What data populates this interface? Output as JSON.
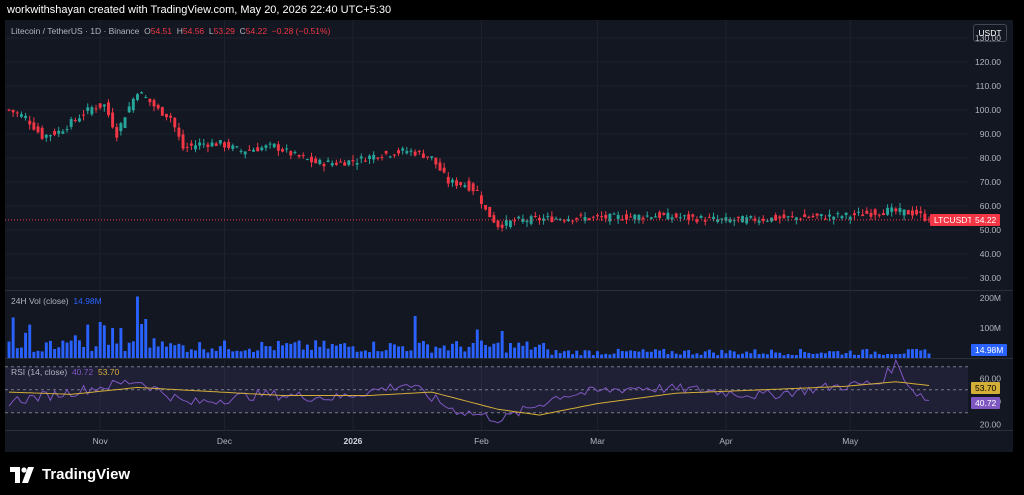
{
  "header": {
    "text": "workwithshayan created with TradingView.com, May 20, 2026 22:40 UTC+5:30"
  },
  "legend": {
    "symbol": "Litecoin / TetherUS · 1D · Binance",
    "o_label": "O",
    "o_value": "54.51",
    "h_label": "H",
    "h_value": "54.56",
    "l_label": "L",
    "l_value": "53.29",
    "c_label": "C",
    "c_value": "54.22",
    "change": "−0.28 (−0.51%)"
  },
  "currency": "USDT",
  "price_tag": {
    "symbol": "LTCUSDT",
    "value": "54.22"
  },
  "volume": {
    "label": "24H Vol (close)",
    "value": "14.98M",
    "tag": "14.98M"
  },
  "rsi": {
    "label": "RSI (14, close)",
    "value": "40.72",
    "ma_value": "53.70",
    "tag_ma": "53.70",
    "tag_rsi": "40.72"
  },
  "colors": {
    "up": "#26a69a",
    "down": "#f23645",
    "volume": "#2962ff",
    "rsi": "#7e57c2",
    "rsi_ma": "#d4af37",
    "pane": "#131722",
    "grid": "#1e222d",
    "text": "#b2b5be"
  },
  "footer": {
    "logo_text": "TradingView",
    "logo_icon": "tradingview-logo-icon"
  },
  "chart_data": [
    {
      "type": "candlestick",
      "title": "Litecoin / TetherUS · 1D · Binance",
      "x_ticks": [
        "Nov",
        "Dec",
        "2026",
        "Feb",
        "Mar",
        "Apr",
        "May"
      ],
      "y_ticks": [
        30,
        40,
        50,
        60,
        70,
        80,
        90,
        100,
        110,
        120,
        130
      ],
      "ylim": [
        25,
        135
      ],
      "x_range": [
        "2025-10-10",
        "2026-05-20"
      ],
      "close_points": [
        [
          "2025-10-10",
          100
        ],
        [
          "2025-10-14",
          97
        ],
        [
          "2025-10-18",
          89
        ],
        [
          "2025-10-22",
          91
        ],
        [
          "2025-10-26",
          96
        ],
        [
          "2025-10-30",
          101
        ],
        [
          "2025-11-02",
          102
        ],
        [
          "2025-11-05",
          90
        ],
        [
          "2025-11-07",
          98
        ],
        [
          "2025-11-10",
          108
        ],
        [
          "2025-11-12",
          105
        ],
        [
          "2025-11-15",
          100
        ],
        [
          "2025-11-18",
          97
        ],
        [
          "2025-11-21",
          84
        ],
        [
          "2025-11-25",
          86
        ],
        [
          "2025-11-30",
          86
        ],
        [
          "2025-12-05",
          83
        ],
        [
          "2025-12-09",
          84
        ],
        [
          "2025-12-13",
          85
        ],
        [
          "2025-12-18",
          81
        ],
        [
          "2025-12-23",
          78
        ],
        [
          "2025-12-28",
          78
        ],
        [
          "2026-01-02",
          79
        ],
        [
          "2026-01-06",
          81
        ],
        [
          "2026-01-10",
          82
        ],
        [
          "2026-01-14",
          83
        ],
        [
          "2026-01-17",
          82
        ],
        [
          "2026-01-20",
          80
        ],
        [
          "2026-01-24",
          70
        ],
        [
          "2026-01-28",
          69
        ],
        [
          "2026-01-31",
          66
        ],
        [
          "2026-02-02",
          58
        ],
        [
          "2026-02-05",
          52
        ],
        [
          "2026-02-10",
          54
        ],
        [
          "2026-02-20",
          55
        ],
        [
          "2026-03-01",
          55
        ],
        [
          "2026-03-15",
          56
        ],
        [
          "2026-04-01",
          54
        ],
        [
          "2026-04-15",
          55
        ],
        [
          "2026-05-01",
          56
        ],
        [
          "2026-05-10",
          58
        ],
        [
          "2026-05-17",
          57
        ],
        [
          "2026-05-20",
          54.22
        ]
      ],
      "last": {
        "open": 54.51,
        "high": 54.56,
        "low": 53.29,
        "close": 54.22
      }
    },
    {
      "type": "bar",
      "title": "24H Vol (close)",
      "y_ticks": [
        "100M",
        "200M"
      ],
      "ylim": [
        0,
        220
      ],
      "unit": "M",
      "peaks": [
        [
          "2025-10-11",
          135
        ],
        [
          "2025-11-01",
          120
        ],
        [
          "2025-11-10",
          205
        ],
        [
          "2025-11-12",
          130
        ],
        [
          "2026-01-16",
          140
        ],
        [
          "2026-01-31",
          95
        ],
        [
          "2026-02-06",
          90
        ]
      ],
      "last": 14.98
    },
    {
      "type": "line",
      "title": "RSI (14, close)",
      "y_ticks": [
        20,
        40,
        60
      ],
      "ylim": [
        15,
        75
      ],
      "bands": [
        30,
        50,
        70
      ],
      "series": [
        {
          "name": "RSI",
          "values": [
            [
              "2025-10-10",
              40
            ],
            [
              "2025-10-25",
              48
            ],
            [
              "2025-11-10",
              58
            ],
            [
              "2025-11-22",
              38
            ],
            [
              "2025-12-10",
              46
            ],
            [
              "2025-12-28",
              43
            ],
            [
              "2026-01-14",
              55
            ],
            [
              "2026-01-25",
              33
            ],
            [
              "2026-02-06",
              24
            ],
            [
              "2026-02-20",
              45
            ],
            [
              "2026-03-10",
              52
            ],
            [
              "2026-03-25",
              50
            ],
            [
              "2026-04-10",
              45
            ],
            [
              "2026-04-25",
              52
            ],
            [
              "2026-05-08",
              56
            ],
            [
              "2026-05-12",
              73
            ],
            [
              "2026-05-16",
              50
            ],
            [
              "2026-05-20",
              40.72
            ]
          ]
        },
        {
          "name": "RSI-based MA",
          "values": [
            [
              "2025-10-10",
              48
            ],
            [
              "2025-10-25",
              46
            ],
            [
              "2025-11-10",
              52
            ],
            [
              "2025-11-25",
              49
            ],
            [
              "2025-12-15",
              45
            ],
            [
              "2026-01-05",
              45
            ],
            [
              "2026-01-20",
              48
            ],
            [
              "2026-02-05",
              33
            ],
            [
              "2026-02-15",
              28
            ],
            [
              "2026-03-01",
              38
            ],
            [
              "2026-03-20",
              47
            ],
            [
              "2026-04-10",
              50
            ],
            [
              "2026-04-30",
              53
            ],
            [
              "2026-05-12",
              57
            ],
            [
              "2026-05-20",
              53.7
            ]
          ]
        }
      ]
    }
  ]
}
